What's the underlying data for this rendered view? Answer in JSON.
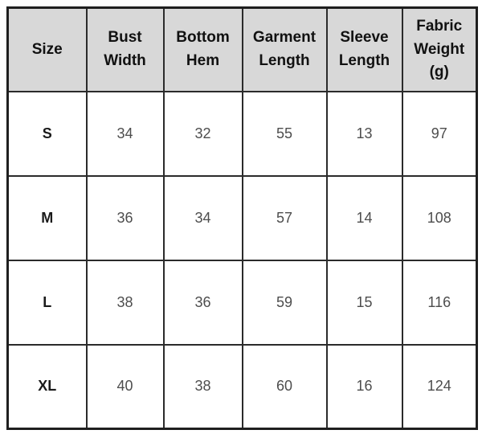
{
  "table": {
    "headers": [
      "Size",
      "Bust Width",
      "Bottom Hem",
      "Garment Length",
      "Sleeve Length",
      "Fabric Weight (g)"
    ],
    "rows": [
      {
        "size": "S",
        "values": [
          "34",
          "32",
          "55",
          "13",
          "97"
        ]
      },
      {
        "size": "M",
        "values": [
          "36",
          "34",
          "57",
          "14",
          "108"
        ]
      },
      {
        "size": "L",
        "values": [
          "38",
          "36",
          "59",
          "15",
          "116"
        ]
      },
      {
        "size": "XL",
        "values": [
          "40",
          "38",
          "60",
          "16",
          "124"
        ]
      }
    ]
  },
  "colors": {
    "header_background": "#d8d8d8",
    "grid_border": "#2b2b2b",
    "outer_border": "#1f1f1f",
    "header_text": "#111111",
    "size_text": "#1a1a1a",
    "value_text": "#4d4d4d"
  },
  "chart_data": {
    "type": "table",
    "title": "",
    "columns": [
      "Size",
      "Bust Width",
      "Bottom Hem",
      "Garment Length",
      "Sleeve Length",
      "Fabric Weight (g)"
    ],
    "rows": [
      [
        "S",
        34,
        32,
        55,
        13,
        97
      ],
      [
        "M",
        36,
        34,
        57,
        14,
        108
      ],
      [
        "L",
        38,
        36,
        59,
        15,
        116
      ],
      [
        "XL",
        40,
        38,
        60,
        16,
        124
      ]
    ],
    "layout": {
      "header_row_shaded": true,
      "grid": true,
      "legend_position": "none"
    }
  }
}
